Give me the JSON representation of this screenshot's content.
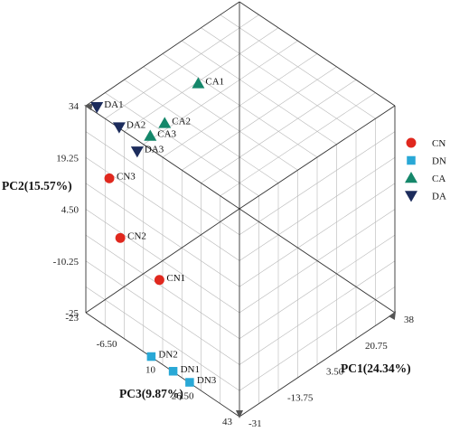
{
  "chart_data": {
    "type": "scatter",
    "axes": {
      "pc1": {
        "label": "PC1(24.34%)",
        "ticks": [
          "-31",
          "-13.75",
          "3.50",
          "20.75",
          "38"
        ],
        "range": [
          -31,
          38
        ]
      },
      "pc2": {
        "label": "PC2(15.57%)",
        "ticks": [
          "-25",
          "-10.25",
          "4.50",
          "19.25",
          "34"
        ],
        "range": [
          -25,
          34
        ]
      },
      "pc3": {
        "label": "PC3(9.87%)",
        "ticks": [
          "-23",
          "-6.50",
          "10",
          "26.50",
          "43"
        ],
        "range": [
          -23,
          43
        ]
      }
    },
    "grid": true,
    "legend_position": "right",
    "legend": [
      {
        "name": "CN",
        "shape": "circle",
        "color": "#e0281e"
      },
      {
        "name": "DN",
        "shape": "square",
        "color": "#29a8d6"
      },
      {
        "name": "CA",
        "shape": "triangle-up",
        "color": "#15876a"
      },
      {
        "name": "DA",
        "shape": "triangle-down",
        "color": "#1c2c5c"
      }
    ],
    "points": [
      {
        "label": "DA1",
        "group": "DA",
        "pc1": -26.1,
        "pc2": 31.6,
        "pc3": -23
      },
      {
        "label": "DA2",
        "group": "DA",
        "pc1": -16.2,
        "pc2": 21.6,
        "pc3": -23
      },
      {
        "label": "DA3",
        "group": "DA",
        "pc1": -8.2,
        "pc2": 11.3,
        "pc3": -23
      },
      {
        "label": "CA3",
        "group": "CA",
        "pc1": -2.4,
        "pc2": 13.2,
        "pc3": -23
      },
      {
        "label": "CA2",
        "group": "CA",
        "pc1": 4.0,
        "pc2": 14.1,
        "pc3": -23
      },
      {
        "label": "CA1",
        "group": "CA",
        "pc1": 18.9,
        "pc2": 19.1,
        "pc3": -23
      },
      {
        "label": "CN3",
        "group": "CN",
        "pc1": -31,
        "pc2": 17.8,
        "pc3": -12.9
      },
      {
        "label": "CN2",
        "group": "CN",
        "pc1": -31,
        "pc2": 2.9,
        "pc3": -8.2
      },
      {
        "label": "CN1",
        "group": "CN",
        "pc1": -31,
        "pc2": -1.6,
        "pc3": 8.6
      },
      {
        "label": "DN2",
        "group": "DN",
        "pc1": -31,
        "pc2": -25,
        "pc3": 5.1
      },
      {
        "label": "DN1",
        "group": "DN",
        "pc1": -31,
        "pc2": -25,
        "pc3": 14.5
      },
      {
        "label": "DN3",
        "group": "DN",
        "pc1": -31,
        "pc2": -25,
        "pc3": 21.6
      }
    ]
  }
}
